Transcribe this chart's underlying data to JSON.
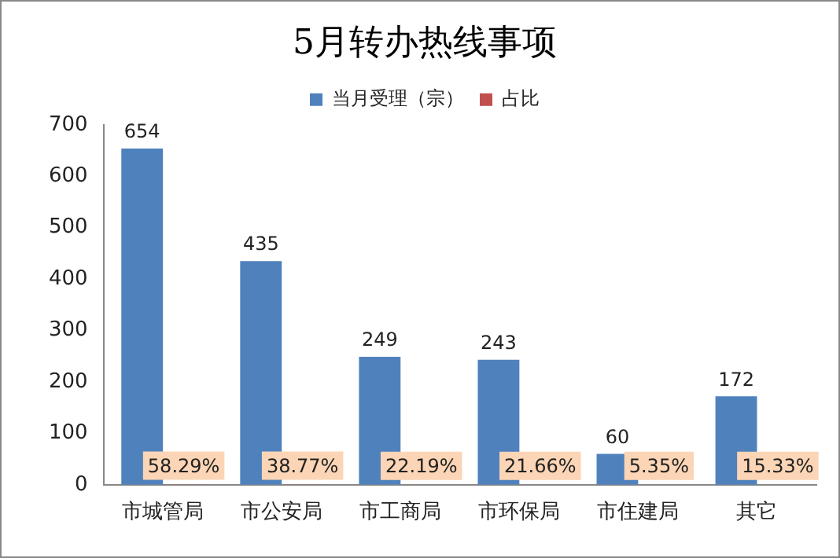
{
  "chart_data": {
    "type": "bar",
    "title": "5月转办热线事项",
    "categories": [
      "市城管局",
      "市公安局",
      "市工商局",
      "市环保局",
      "市住建局",
      "其它"
    ],
    "series": [
      {
        "name": "当月受理（宗）",
        "color": "#4f81bd",
        "values": [
          654,
          435,
          249,
          243,
          60,
          172
        ],
        "value_labels": [
          "654",
          "435",
          "249",
          "243",
          "60",
          "172"
        ]
      },
      {
        "name": "占比",
        "color": "#c0504d",
        "values": [
          0.5829,
          0.3877,
          0.2219,
          0.2166,
          0.0535,
          0.1533
        ],
        "value_labels": [
          "58.29%",
          "38.77%",
          "22.19%",
          "21.66%",
          "5.35%",
          "15.33%"
        ]
      }
    ],
    "ylim": [
      0,
      700
    ],
    "yticks": [
      0,
      100,
      200,
      300,
      400,
      500,
      600,
      700
    ],
    "grid": false,
    "legend": "top"
  }
}
